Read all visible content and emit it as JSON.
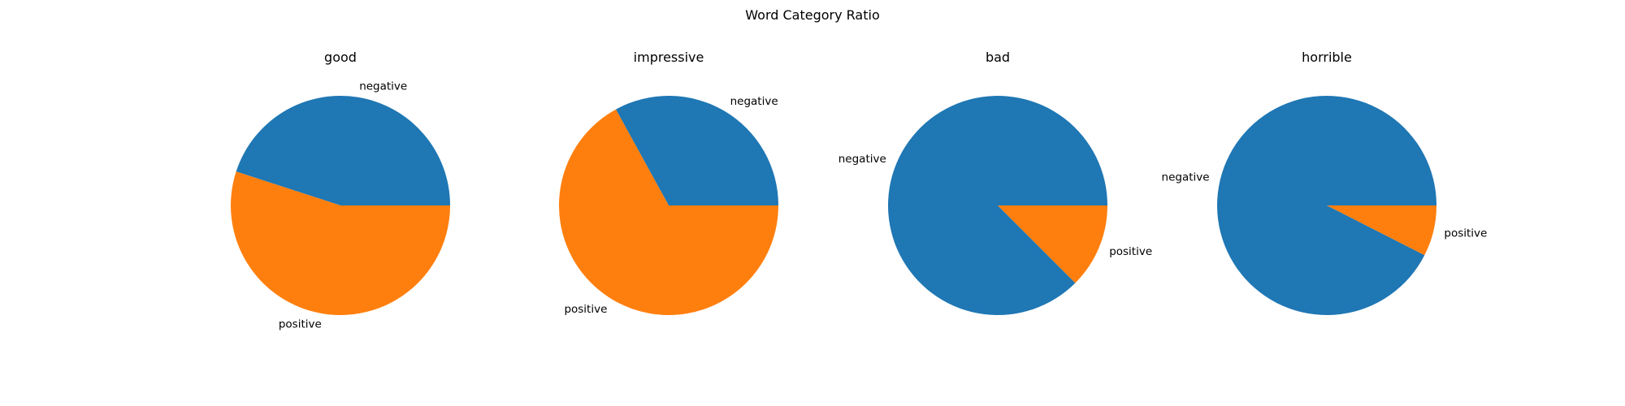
{
  "figure_title": "Word Category Ratio",
  "colors": {
    "negative": "#1f77b4",
    "positive": "#ff7f0e"
  },
  "chart_data": [
    {
      "type": "pie",
      "title": "good",
      "slices": [
        {
          "label": "negative",
          "value": 0.45,
          "color": "#1f77b4"
        },
        {
          "label": "positive",
          "value": 0.55,
          "color": "#ff7f0e"
        }
      ]
    },
    {
      "type": "pie",
      "title": "impressive",
      "slices": [
        {
          "label": "negative",
          "value": 0.33,
          "color": "#1f77b4"
        },
        {
          "label": "positive",
          "value": 0.67,
          "color": "#ff7f0e"
        }
      ]
    },
    {
      "type": "pie",
      "title": "bad",
      "slices": [
        {
          "label": "negative",
          "value": 0.875,
          "color": "#1f77b4"
        },
        {
          "label": "positive",
          "value": 0.125,
          "color": "#ff7f0e"
        }
      ]
    },
    {
      "type": "pie",
      "title": "horrible",
      "slices": [
        {
          "label": "negative",
          "value": 0.925,
          "color": "#1f77b4"
        },
        {
          "label": "positive",
          "value": 0.075,
          "color": "#ff7f0e"
        }
      ]
    }
  ]
}
